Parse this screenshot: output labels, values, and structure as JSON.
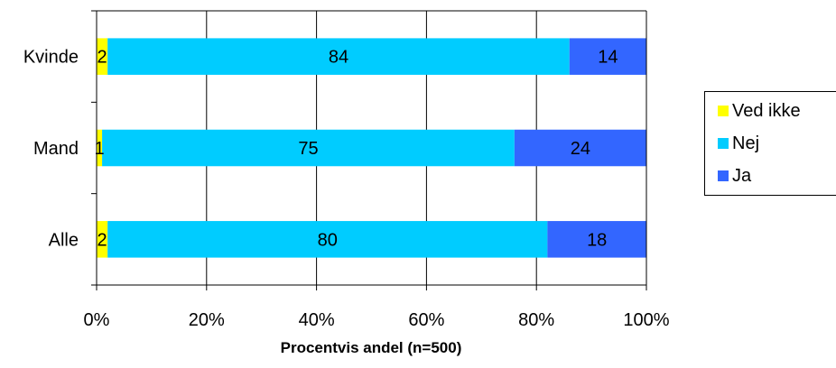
{
  "chart_data": {
    "type": "bar",
    "orientation": "horizontal",
    "stacked": true,
    "percent_stacked": true,
    "categories": [
      "Kvinde",
      "Mand",
      "Alle"
    ],
    "series": [
      {
        "name": "Ved ikke",
        "color": "#ffff00",
        "values": [
          2,
          1,
          2
        ]
      },
      {
        "name": "Nej",
        "color": "#00ccff",
        "values": [
          84,
          75,
          80
        ]
      },
      {
        "name": "Ja",
        "color": "#3366ff",
        "values": [
          14,
          24,
          18
        ]
      }
    ],
    "xlabel": "Procentvis andel (n=500)",
    "x_tick_labels": [
      "0%",
      "20%",
      "40%",
      "60%",
      "80%",
      "100%"
    ],
    "xlim": [
      0,
      100
    ],
    "grid": "vertical",
    "legend_position": "right"
  }
}
